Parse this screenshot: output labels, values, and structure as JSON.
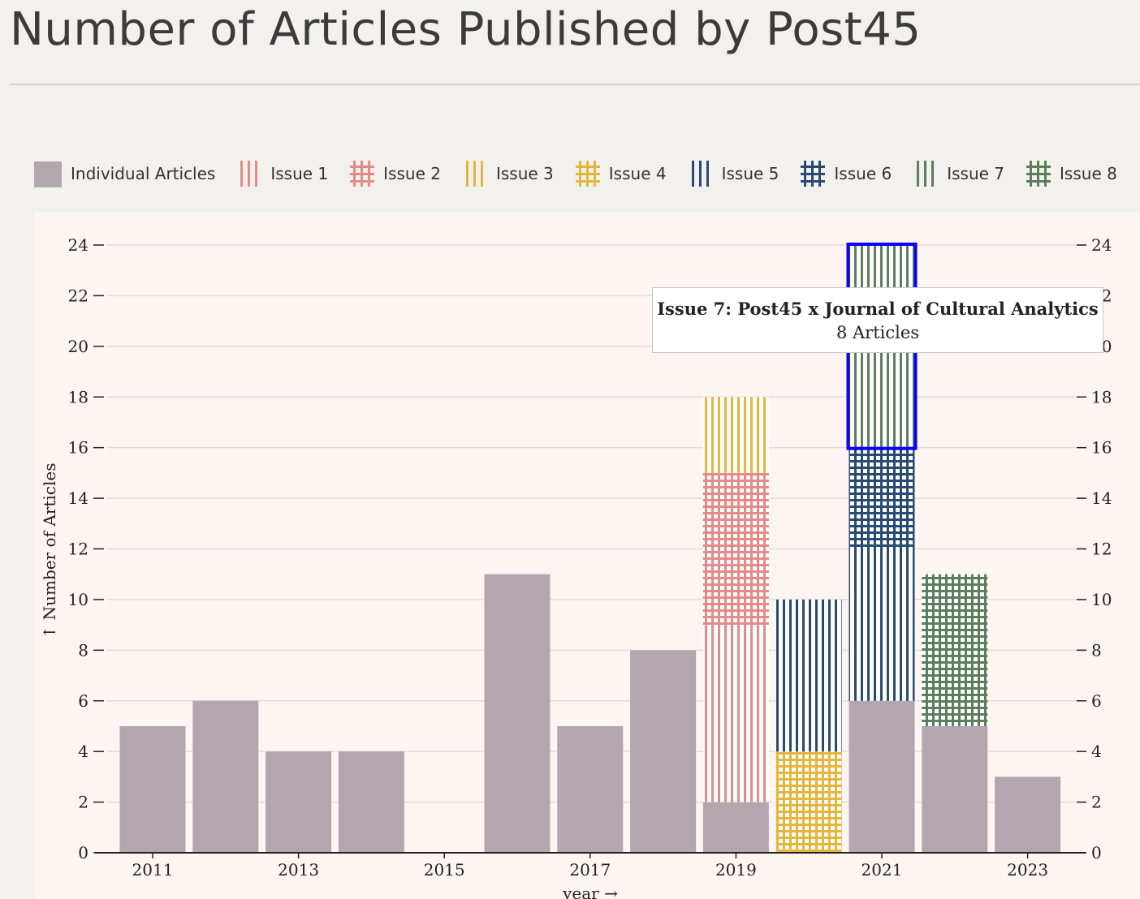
{
  "title": "Number of Articles Published by Post45",
  "colors": {
    "individual": "#b2a7ae",
    "issue1": "#e58a87",
    "issue2": "#e58a87",
    "issue3": "#e6b63a",
    "issue4": "#e6b63a",
    "issue5": "#284b74",
    "issue6": "#284b74",
    "issue7": "#5a7f5a",
    "issue8": "#5a7f5a",
    "highlight": "#0b00ff"
  },
  "legend": [
    {
      "key": "individual",
      "label": "Individual Articles",
      "pattern": "solid",
      "color": "#b2a7ae"
    },
    {
      "key": "issue1",
      "label": "Issue 1",
      "pattern": "vertical",
      "color": "#e58a87"
    },
    {
      "key": "issue2",
      "label": "Issue 2",
      "pattern": "grid",
      "color": "#e58a87"
    },
    {
      "key": "issue3",
      "label": "Issue 3",
      "pattern": "vertical",
      "color": "#e6b63a"
    },
    {
      "key": "issue4",
      "label": "Issue 4",
      "pattern": "grid",
      "color": "#e6b63a"
    },
    {
      "key": "issue5",
      "label": "Issue 5",
      "pattern": "vertical",
      "color": "#284b74"
    },
    {
      "key": "issue6",
      "label": "Issue 6",
      "pattern": "grid",
      "color": "#284b74"
    },
    {
      "key": "issue7",
      "label": "Issue 7",
      "pattern": "vertical",
      "color": "#5a7f5a"
    },
    {
      "key": "issue8",
      "label": "Issue 8",
      "pattern": "grid",
      "color": "#5a7f5a"
    }
  ],
  "chart_data": {
    "type": "bar",
    "stacked": true,
    "xlabel": "year →",
    "ylabel": "↑ Number of Articles",
    "ylim": [
      0,
      24
    ],
    "yticks": [
      0,
      2,
      4,
      6,
      8,
      10,
      12,
      14,
      16,
      18,
      20,
      22,
      24
    ],
    "xticks": [
      "2011",
      "2013",
      "2015",
      "2017",
      "2019",
      "2021",
      "2023"
    ],
    "categories": [
      "2011",
      "2012",
      "2013",
      "2014",
      "2015",
      "2016",
      "2017",
      "2018",
      "2019",
      "2020",
      "2021",
      "2022",
      "2023"
    ],
    "grid": true,
    "legend_placement": "top",
    "series": [
      {
        "key": "individual",
        "name": "Individual Articles",
        "values": [
          5,
          6,
          4,
          4,
          0,
          11,
          5,
          8,
          2,
          0,
          6,
          5,
          3
        ]
      },
      {
        "key": "issue1",
        "name": "Issue 1",
        "values": [
          0,
          0,
          0,
          0,
          0,
          0,
          0,
          0,
          7,
          0,
          0,
          0,
          0
        ]
      },
      {
        "key": "issue2",
        "name": "Issue 2",
        "values": [
          0,
          0,
          0,
          0,
          0,
          0,
          0,
          0,
          6,
          0,
          0,
          0,
          0
        ]
      },
      {
        "key": "issue3",
        "name": "Issue 3",
        "values": [
          0,
          0,
          0,
          0,
          0,
          0,
          0,
          0,
          3,
          0,
          0,
          0,
          0
        ]
      },
      {
        "key": "issue4",
        "name": "Issue 4",
        "values": [
          0,
          0,
          0,
          0,
          0,
          0,
          0,
          0,
          0,
          4,
          0,
          0,
          0
        ]
      },
      {
        "key": "issue5",
        "name": "Issue 5",
        "values": [
          0,
          0,
          0,
          0,
          0,
          0,
          0,
          0,
          0,
          6,
          6,
          0,
          0
        ]
      },
      {
        "key": "issue6",
        "name": "Issue 6",
        "values": [
          0,
          0,
          0,
          0,
          0,
          0,
          0,
          0,
          0,
          0,
          4,
          0,
          0
        ]
      },
      {
        "key": "issue7",
        "name": "Issue 7",
        "values": [
          0,
          0,
          0,
          0,
          0,
          0,
          0,
          0,
          0,
          0,
          8,
          0,
          0
        ]
      },
      {
        "key": "issue8",
        "name": "Issue 8",
        "values": [
          0,
          0,
          0,
          0,
          0,
          0,
          0,
          0,
          0,
          0,
          0,
          6,
          0
        ]
      }
    ],
    "highlighted": {
      "series": "issue7",
      "category": "2021"
    }
  },
  "tooltip": {
    "title": "Issue 7: Post45 x Journal of Cultural Analytics",
    "value": "8 Articles"
  }
}
